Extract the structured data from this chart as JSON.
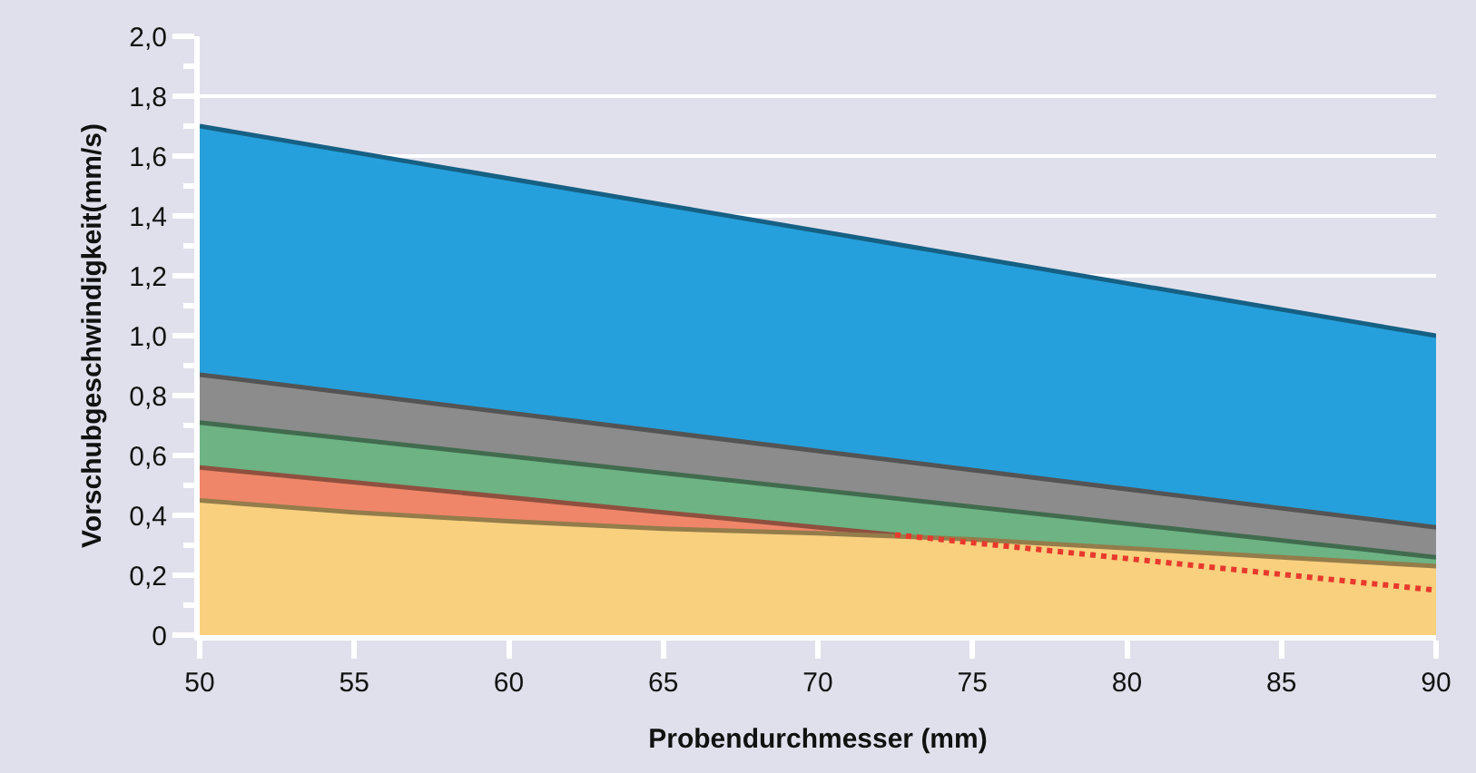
{
  "chart_data": {
    "type": "area",
    "xlabel": "Probendurchmesser (mm)",
    "ylabel": "Vorschubgeschwindigkeit(mm/s)",
    "x": [
      50,
      90
    ],
    "xlim": [
      50,
      90
    ],
    "xticks": [
      50,
      55,
      60,
      65,
      70,
      75,
      80,
      85,
      90
    ],
    "ylim": [
      0,
      2
    ],
    "yticks": [
      {
        "value": 0,
        "label": "0"
      },
      {
        "value": 0.2,
        "label": "0,2"
      },
      {
        "value": 0.4,
        "label": "0,4"
      },
      {
        "value": 0.6,
        "label": "0,6"
      },
      {
        "value": 0.8,
        "label": "0,8"
      },
      {
        "value": 1,
        "label": "1,0"
      },
      {
        "value": 1.2,
        "label": "1,2"
      },
      {
        "value": 1.4,
        "label": "1,4"
      },
      {
        "value": 1.6,
        "label": "1,6"
      },
      {
        "value": 1.8,
        "label": "1,8"
      },
      {
        "value": 2,
        "label": "2,0"
      }
    ],
    "grid": "y",
    "marker": "none",
    "series": [
      {
        "color": "#26a0dc",
        "values": [
          1.7,
          1.0
        ]
      },
      {
        "color": "#8c8c8c",
        "values": [
          0.87,
          0.36
        ]
      },
      {
        "color": "#6db383",
        "values": [
          0.71,
          0.26
        ]
      },
      {
        "color": "#ef8669",
        "x": [
          50,
          72.5
        ],
        "values": [
          0.56,
          0.335
        ]
      },
      {
        "color": "#f8d07e",
        "x": [
          50,
          55,
          60,
          65,
          70,
          75,
          80,
          85,
          90
        ],
        "values": [
          0.45,
          0.41,
          0.38,
          0.355,
          0.34,
          0.32,
          0.29,
          0.26,
          0.23
        ]
      },
      {
        "type": "line",
        "line_style": "dotted",
        "color": "#e8392c",
        "x": [
          72.5,
          90
        ],
        "values": [
          0.335,
          0.15
        ]
      }
    ]
  }
}
